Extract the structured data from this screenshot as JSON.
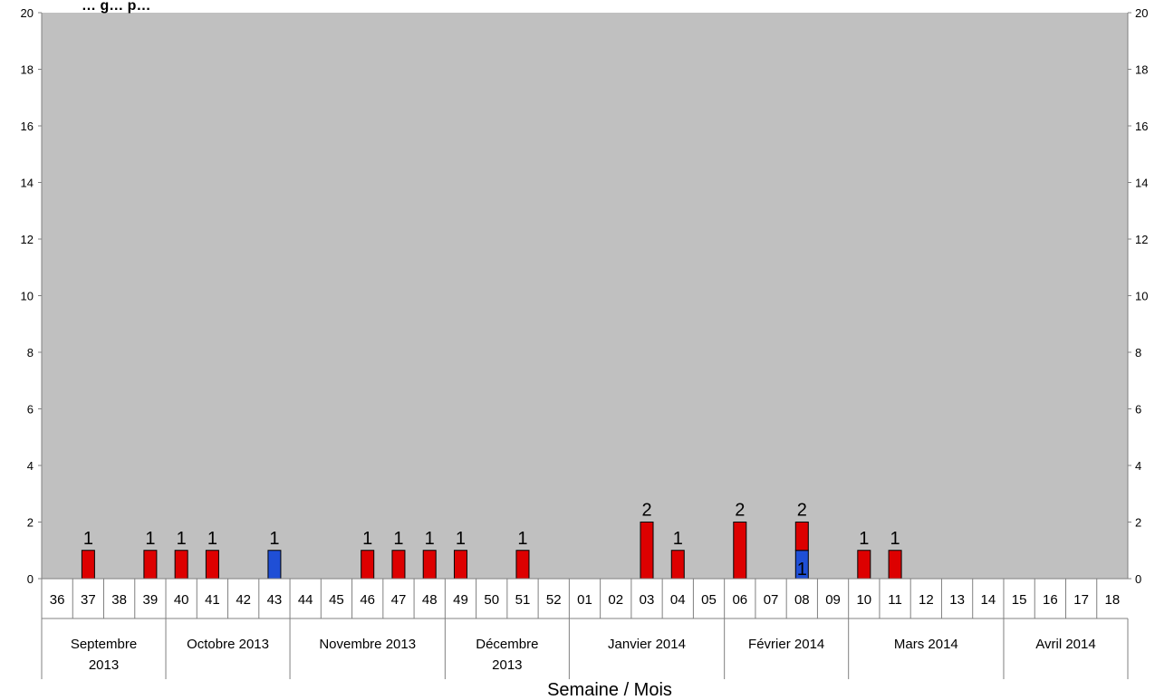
{
  "chart_data": {
    "type": "bar",
    "stacked": true,
    "title": "… g… p…",
    "xlabel": "Semaine /  Mois",
    "ylabel": "",
    "ylim": [
      0,
      20
    ],
    "yticks": [
      0,
      2,
      4,
      6,
      8,
      10,
      12,
      14,
      16,
      18,
      20
    ],
    "secondary_y_axis": true,
    "grid": false,
    "plot_background": "#c0c0c0",
    "categories": [
      "36",
      "37",
      "38",
      "39",
      "40",
      "41",
      "42",
      "43",
      "44",
      "45",
      "46",
      "47",
      "48",
      "49",
      "50",
      "51",
      "52",
      "01",
      "02",
      "03",
      "04",
      "05",
      "06",
      "07",
      "08",
      "09",
      "10",
      "11",
      "12",
      "13",
      "14",
      "15",
      "16",
      "17",
      "18"
    ],
    "months": [
      {
        "label": "Septembre 2013",
        "lines": [
          "Septembre",
          "2013"
        ],
        "weeks": [
          "36",
          "37",
          "38",
          "39"
        ]
      },
      {
        "label": "Octobre 2013",
        "lines": [
          "Octobre 2013"
        ],
        "weeks": [
          "40",
          "41",
          "42",
          "43"
        ]
      },
      {
        "label": "Novembre 2013",
        "lines": [
          "Novembre 2013"
        ],
        "weeks": [
          "44",
          "45",
          "46",
          "47",
          "48"
        ]
      },
      {
        "label": "Décembre 2013",
        "lines": [
          "Décembre",
          "2013"
        ],
        "weeks": [
          "49",
          "50",
          "51",
          "52"
        ]
      },
      {
        "label": "Janvier 2014",
        "lines": [
          "Janvier 2014"
        ],
        "weeks": [
          "01",
          "02",
          "03",
          "04",
          "05"
        ]
      },
      {
        "label": "Février 2014",
        "lines": [
          "Février 2014"
        ],
        "weeks": [
          "06",
          "07",
          "08",
          "09"
        ]
      },
      {
        "label": "Mars 2014",
        "lines": [
          "Mars 2014"
        ],
        "weeks": [
          "10",
          "11",
          "12",
          "13",
          "14"
        ]
      },
      {
        "label": "Avril 2014",
        "lines": [
          "Avril 2014"
        ],
        "weeks": [
          "15",
          "16",
          "17",
          "18"
        ]
      }
    ],
    "series": [
      {
        "color": "#1f4fd6",
        "values": [
          0,
          0,
          0,
          0,
          0,
          0,
          0,
          1,
          0,
          0,
          0,
          0,
          0,
          0,
          0,
          0,
          0,
          0,
          0,
          0,
          0,
          0,
          0,
          0,
          1,
          0,
          0,
          0,
          0,
          0,
          0,
          0,
          0,
          0,
          0
        ]
      },
      {
        "color": "#dd0000",
        "values": [
          0,
          1,
          0,
          1,
          1,
          1,
          0,
          0,
          0,
          0,
          1,
          1,
          1,
          1,
          0,
          1,
          0,
          0,
          0,
          2,
          1,
          0,
          2,
          0,
          1,
          0,
          1,
          1,
          0,
          0,
          0,
          0,
          0,
          0,
          0
        ]
      }
    ],
    "bar_labels": [
      {
        "week": "37",
        "label": "1"
      },
      {
        "week": "39",
        "label": "1"
      },
      {
        "week": "40",
        "label": "1"
      },
      {
        "week": "41",
        "label": "1"
      },
      {
        "week": "43",
        "label": "1"
      },
      {
        "week": "46",
        "label": "1"
      },
      {
        "week": "47",
        "label": "1"
      },
      {
        "week": "48",
        "label": "1"
      },
      {
        "week": "49",
        "label": "1"
      },
      {
        "week": "51",
        "label": "1"
      },
      {
        "week": "03",
        "label": "2"
      },
      {
        "week": "04",
        "label": "1"
      },
      {
        "week": "06",
        "label": "2"
      },
      {
        "week": "08",
        "label": "2"
      },
      {
        "week": "10",
        "label": "1"
      },
      {
        "week": "11",
        "label": "1"
      }
    ],
    "inner_labels": [
      {
        "week": "08",
        "label": "1"
      }
    ]
  }
}
